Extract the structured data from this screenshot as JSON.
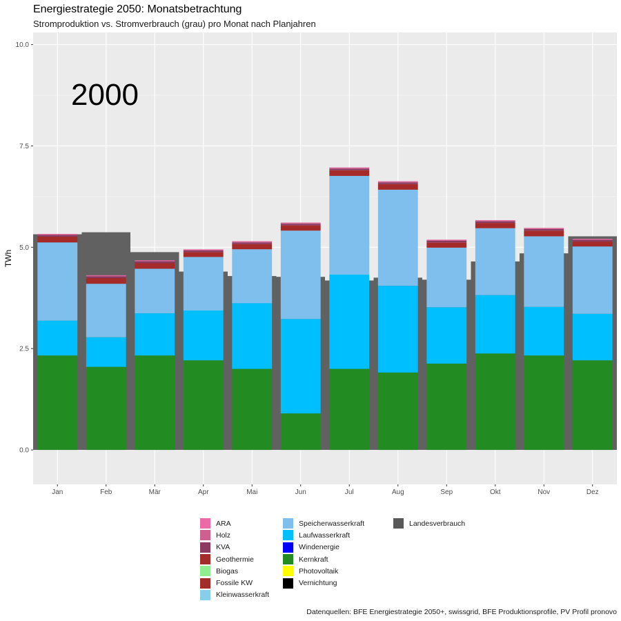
{
  "header": {
    "title": "Energiestrategie 2050: Monatsbetrachtung",
    "subtitle": "Stromproduktion vs. Stromverbrauch (grau) pro Monat nach Planjahren"
  },
  "caption": "Datenquellen: BFE Energiestrategie 2050+, swissgrid, BFE Produktionsprofile, PV Profil pronovo",
  "chart_data": {
    "type": "bar",
    "stacked": true,
    "year_label": "2000",
    "ylabel": "TWh",
    "xlabel": "",
    "ylim": [
      -0.85,
      10.3
    ],
    "yticks": [
      0.0,
      2.5,
      5.0,
      7.5,
      10.0
    ],
    "ytick_labels": [
      "0.0",
      "2.5",
      "5.0",
      "7.5",
      "10.0"
    ],
    "grid": true,
    "legend_position": "bottom",
    "categories": [
      "Jan",
      "Feb",
      "Mär",
      "Apr",
      "Mai",
      "Jun",
      "Jul",
      "Aug",
      "Sep",
      "Okt",
      "Nov",
      "Dez"
    ],
    "consumption": {
      "name": "Landesverbrauch",
      "color": "#616161",
      "values": [
        5.32,
        5.37,
        4.88,
        4.4,
        4.29,
        4.27,
        4.18,
        4.25,
        4.2,
        4.65,
        4.85,
        5.27
      ]
    },
    "series": [
      {
        "name": "Kernkraft",
        "color": "#228B22",
        "values": [
          2.33,
          2.05,
          2.33,
          2.21,
          2.0,
          0.9,
          2.0,
          1.91,
          2.13,
          2.38,
          2.33,
          2.21
        ]
      },
      {
        "name": "Laufwasserkraft",
        "color": "#00BFFF",
        "values": [
          0.86,
          0.73,
          1.04,
          1.23,
          1.62,
          2.33,
          2.33,
          2.14,
          1.39,
          1.44,
          1.2,
          1.15
        ]
      },
      {
        "name": "Speicherwasserkraft",
        "color": "#7FBFEE",
        "values": [
          1.93,
          1.32,
          1.1,
          1.32,
          1.33,
          2.18,
          2.43,
          2.37,
          1.47,
          1.65,
          1.74,
          1.66
        ]
      },
      {
        "name": "Fossile KW",
        "color": "#A52A2A",
        "values": [
          0.14,
          0.14,
          0.14,
          0.12,
          0.13,
          0.13,
          0.14,
          0.14,
          0.13,
          0.13,
          0.14,
          0.12
        ]
      },
      {
        "name": "KVA",
        "color": "#8B3A62",
        "values": [
          0.04,
          0.04,
          0.04,
          0.04,
          0.04,
          0.04,
          0.04,
          0.04,
          0.04,
          0.04,
          0.04,
          0.04
        ]
      },
      {
        "name": "Holz",
        "color": "#CD6090",
        "values": [
          0.02,
          0.02,
          0.02,
          0.02,
          0.02,
          0.02,
          0.02,
          0.02,
          0.02,
          0.02,
          0.02,
          0.02
        ]
      },
      {
        "name": "ARA",
        "color": "#EE6AA7",
        "values": [
          0.01,
          0.01,
          0.01,
          0.01,
          0.01,
          0.01,
          0.01,
          0.01,
          0.01,
          0.01,
          0.01,
          0.01
        ]
      }
    ],
    "legend": [
      [
        {
          "name": "ARA",
          "color": "#EE6AA7"
        },
        {
          "name": "Holz",
          "color": "#CD6090"
        },
        {
          "name": "KVA",
          "color": "#8B3A62"
        },
        {
          "name": "Geothermie",
          "color": "#A52A2A"
        },
        {
          "name": "Biogas",
          "color": "#90EE90"
        },
        {
          "name": "Fossile KW",
          "color": "#A52A2A"
        },
        {
          "name": "Kleinwasserkraft",
          "color": "#87CEEB"
        }
      ],
      [
        {
          "name": "Speicherwasserkraft",
          "color": "#7FBFEE"
        },
        {
          "name": "Laufwasserkraft",
          "color": "#00BFFF"
        },
        {
          "name": "Windenergie",
          "color": "#0000FF"
        },
        {
          "name": "Kernkraft",
          "color": "#228B22"
        },
        {
          "name": "Photovoltaik",
          "color": "#FFFF00"
        },
        {
          "name": "Vernichtung",
          "color": "#000000"
        }
      ],
      [
        {
          "name": "Landesverbrauch",
          "color": "#595959"
        }
      ]
    ]
  }
}
